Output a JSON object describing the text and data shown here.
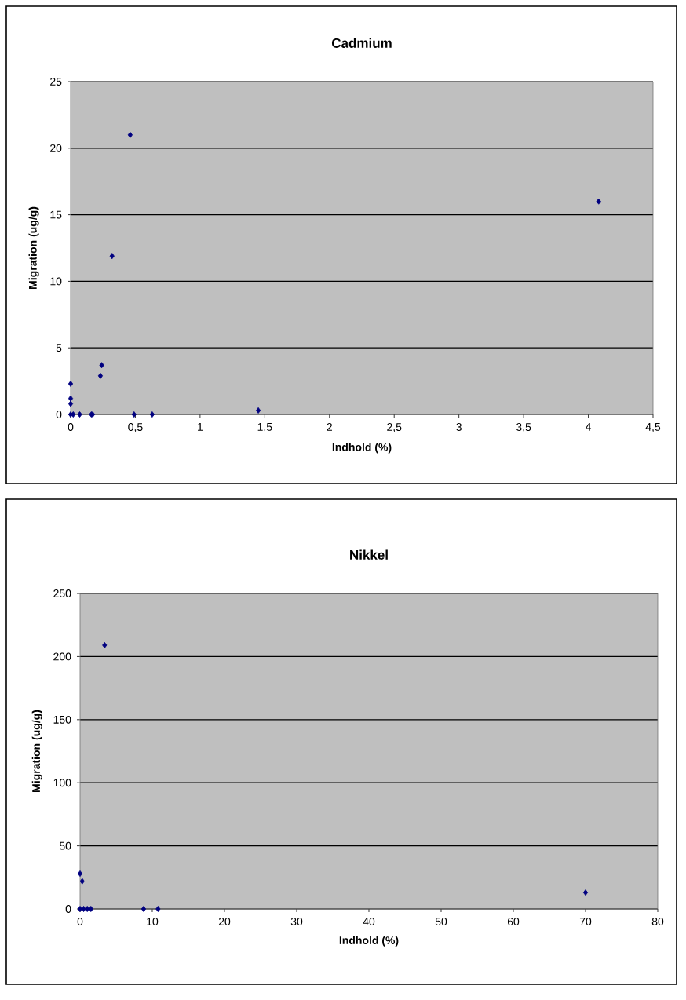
{
  "chart_data": [
    {
      "type": "scatter",
      "title": "Cadmium",
      "xlabel": "Indhold (%)",
      "ylabel": "Migration (ug/g)",
      "color": "#000080",
      "marker": "diamond",
      "grid": "y",
      "x": [
        0,
        0,
        0,
        0,
        0.02,
        0.07,
        0.16,
        0.17,
        0.23,
        0.24,
        0.32,
        0.46,
        0.49,
        0.63,
        1.45,
        4.08
      ],
      "values": [
        0,
        0.8,
        1.2,
        2.3,
        0,
        0,
        0,
        0,
        2.9,
        3.7,
        11.9,
        21,
        0,
        0,
        0.3,
        16
      ],
      "xlim": [
        0,
        4.5
      ],
      "ylim": [
        0,
        25
      ],
      "xticks": [
        0,
        {
          "value": 0.5,
          "label": "0,5"
        },
        1,
        {
          "value": 1.5,
          "label": "1,5"
        },
        2,
        {
          "value": 2.5,
          "label": "2,5"
        },
        3,
        {
          "value": 3.5,
          "label": "3,5"
        },
        4,
        {
          "value": 4.5,
          "label": "4,5"
        }
      ],
      "yticks": [
        0,
        5,
        10,
        15,
        20,
        25
      ]
    },
    {
      "type": "scatter",
      "title": "Nikkel",
      "xlabel": "Indhold (%)",
      "ylabel": "Migration (ug/g)",
      "color": "#000080",
      "marker": "diamond",
      "grid": "y",
      "x": [
        0,
        0,
        0.3,
        0.5,
        1,
        1.5,
        3.4,
        8.8,
        10.8,
        70
      ],
      "values": [
        0,
        28,
        22,
        0,
        0,
        0,
        209,
        0,
        0,
        13
      ],
      "xlim": [
        0,
        80
      ],
      "ylim": [
        0,
        250
      ],
      "xticks": [
        0,
        10,
        20,
        30,
        40,
        50,
        60,
        70,
        80
      ],
      "yticks": [
        0,
        50,
        100,
        150,
        200,
        250
      ]
    }
  ]
}
